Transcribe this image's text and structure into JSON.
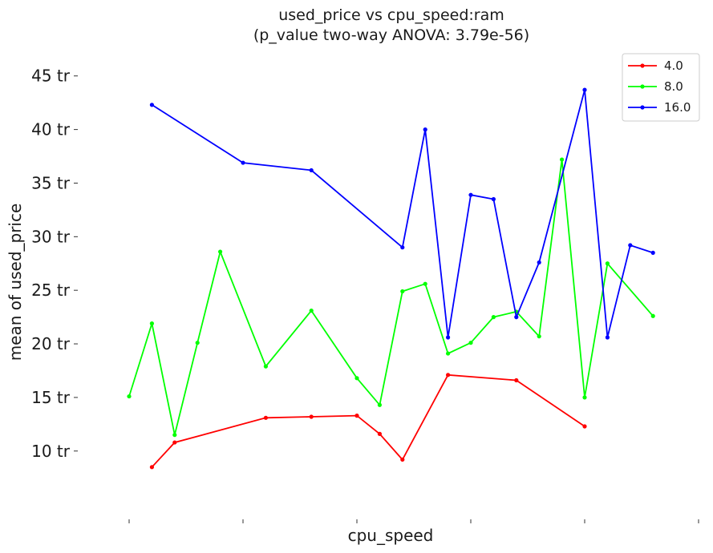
{
  "chart_data": {
    "type": "line",
    "title": "used_price vs cpu_speed:ram",
    "subtitle": "(p_value two-way ANOVA: 3.79e-56)",
    "xlabel": "cpu_speed",
    "ylabel": "mean of used_price",
    "ylim": [
      4,
      47
    ],
    "yticks": [
      10,
      15,
      20,
      25,
      30,
      35,
      40,
      45
    ],
    "ytick_labels": [
      "10 tr",
      "15 tr",
      "20 tr",
      "25 tr",
      "30 tr",
      "35 tr",
      "40 tr",
      "45 tr"
    ],
    "xlim": [
      0,
      25
    ],
    "xticks": [
      0,
      5,
      10,
      15,
      20,
      25
    ],
    "grid": false,
    "legend_position": "top-right",
    "series": [
      {
        "name": "4.0",
        "color": "#ff0000",
        "x": [
          1,
          2,
          6,
          8,
          10,
          11,
          12,
          14,
          17,
          20
        ],
        "y": [
          8.5,
          10.8,
          13.1,
          13.2,
          13.3,
          11.6,
          9.2,
          17.1,
          16.6,
          12.3
        ]
      },
      {
        "name": "8.0",
        "color": "#00ff00",
        "x": [
          0,
          1,
          2,
          3,
          4,
          6,
          8,
          10,
          11,
          12,
          13,
          14,
          15,
          16,
          17,
          18,
          19,
          20,
          21,
          23
        ],
        "y": [
          15.1,
          21.9,
          11.5,
          20.1,
          28.6,
          17.9,
          23.1,
          16.8,
          14.3,
          24.9,
          25.6,
          19.1,
          20.1,
          22.5,
          23.0,
          20.7,
          37.2,
          15.0,
          27.5,
          22.6
        ]
      },
      {
        "name": "16.0",
        "color": "#0000ff",
        "x": [
          1,
          5,
          8,
          12,
          13,
          14,
          15,
          16,
          17,
          18,
          20,
          21,
          22,
          23
        ],
        "y": [
          42.3,
          36.9,
          36.2,
          29.0,
          40.0,
          20.6,
          33.9,
          33.5,
          22.5,
          27.6,
          43.7,
          20.6,
          29.2,
          28.5
        ]
      }
    ]
  }
}
